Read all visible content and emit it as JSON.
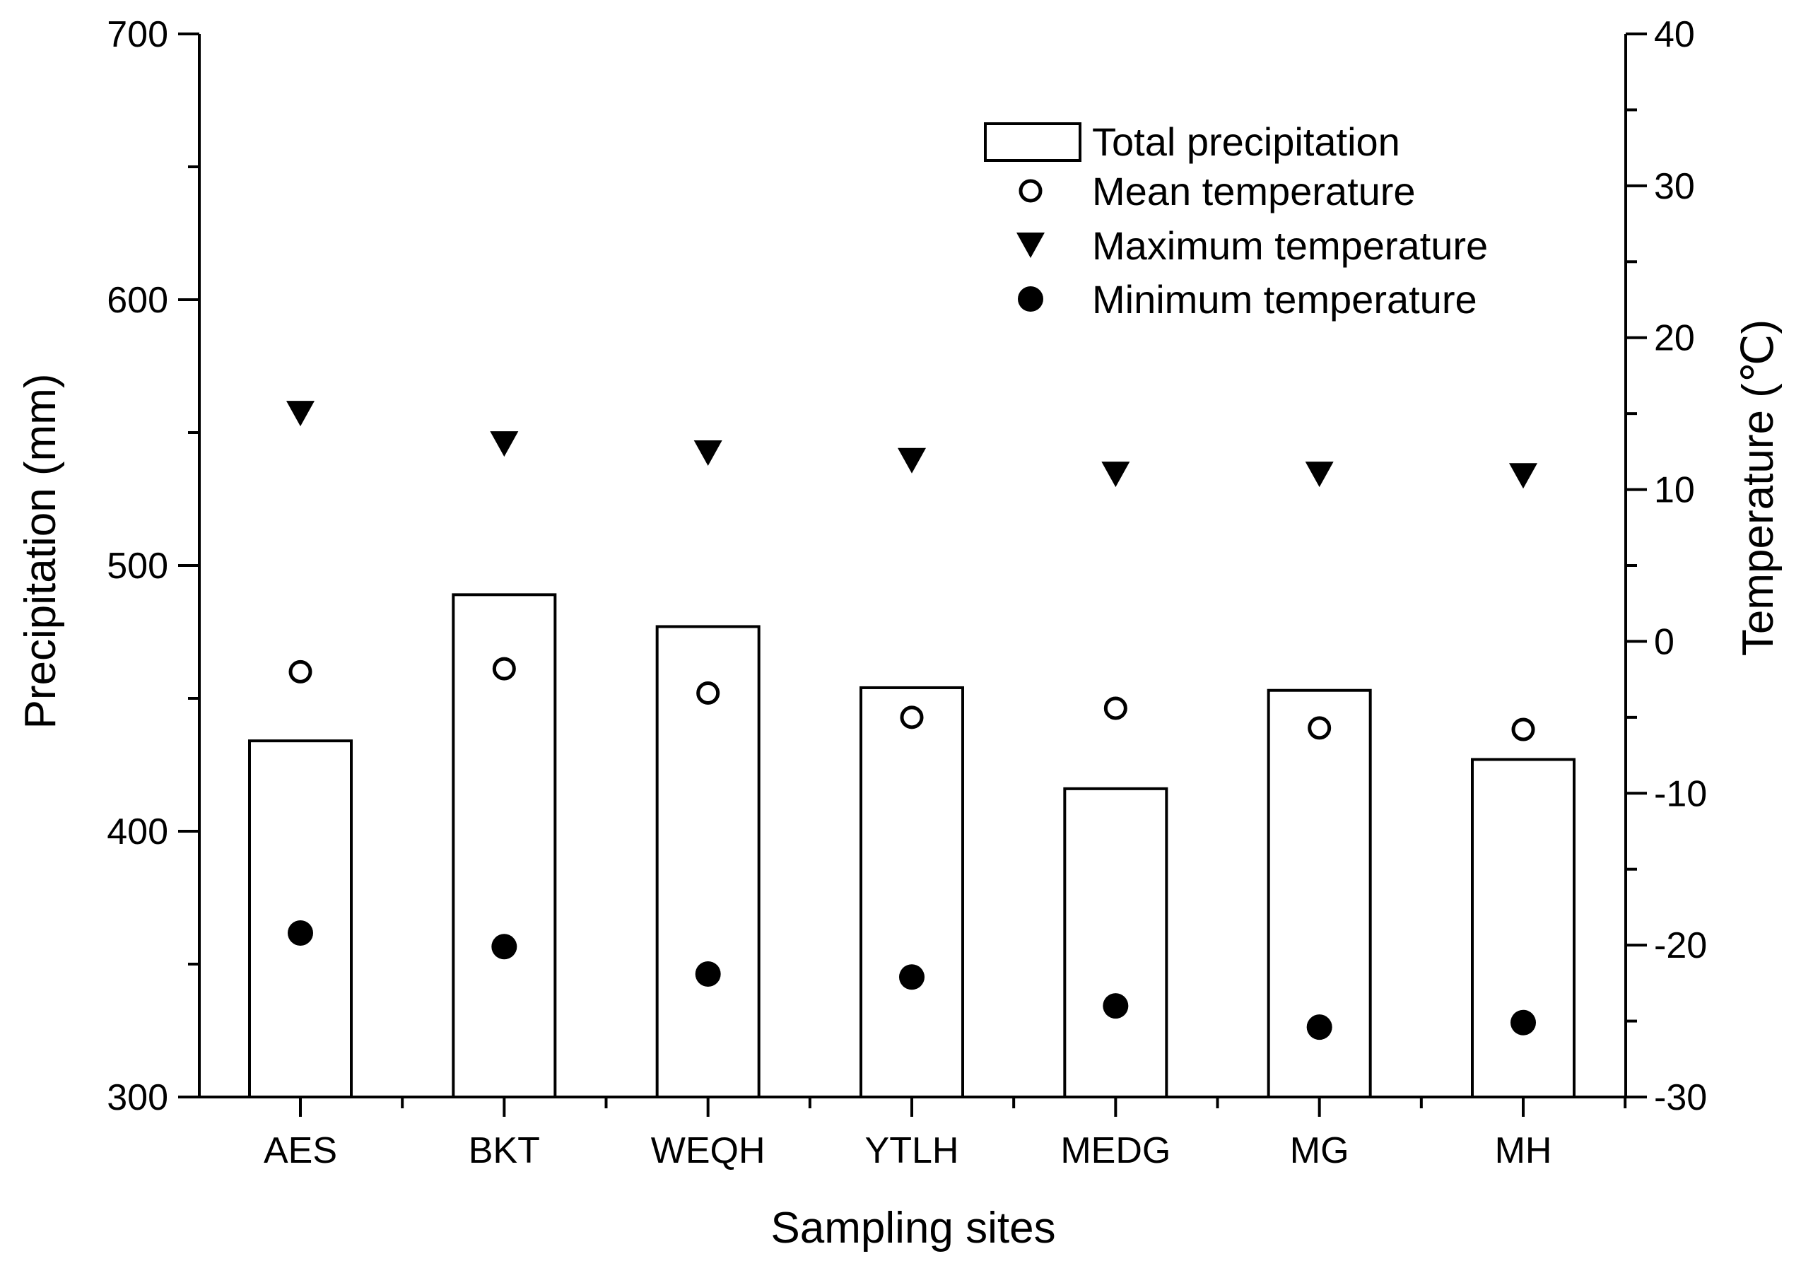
{
  "chart_data": {
    "type": "bar",
    "xlabel": "Sampling sites",
    "ylabel": "Precipitation (mm)",
    "y2label": "Temperature (℃)",
    "categories": [
      "AES",
      "BKT",
      "WEQH",
      "YTLH",
      "MEDG",
      "MG",
      "MH"
    ],
    "ylim": [
      300,
      700
    ],
    "yticks": [
      300,
      400,
      500,
      600,
      700
    ],
    "y2lim": [
      -30,
      40
    ],
    "y2ticks": [
      -30,
      -20,
      -10,
      0,
      10,
      20,
      30,
      40
    ],
    "legend_position": "top-right",
    "series": [
      {
        "name": "Total precipitation",
        "axis": "left",
        "kind": "bar",
        "marker": "open-rectangle",
        "values": [
          434,
          489,
          477,
          454,
          416,
          453,
          427
        ]
      },
      {
        "name": "Mean temperature",
        "axis": "right",
        "kind": "scatter",
        "marker": "open-circle",
        "values": [
          -2.0,
          -1.8,
          -3.4,
          -5.0,
          -4.4,
          -5.7,
          -5.8
        ]
      },
      {
        "name": "Maximum temperature",
        "axis": "right",
        "kind": "scatter",
        "marker": "filled-triangle-down",
        "values": [
          15.0,
          13.0,
          12.4,
          11.9,
          11.0,
          11.0,
          10.9
        ]
      },
      {
        "name": "Minimum temperature",
        "axis": "right",
        "kind": "scatter",
        "marker": "filled-circle",
        "values": [
          -19.2,
          -20.1,
          -21.9,
          -22.1,
          -24.0,
          -25.4,
          -25.1
        ]
      }
    ]
  }
}
